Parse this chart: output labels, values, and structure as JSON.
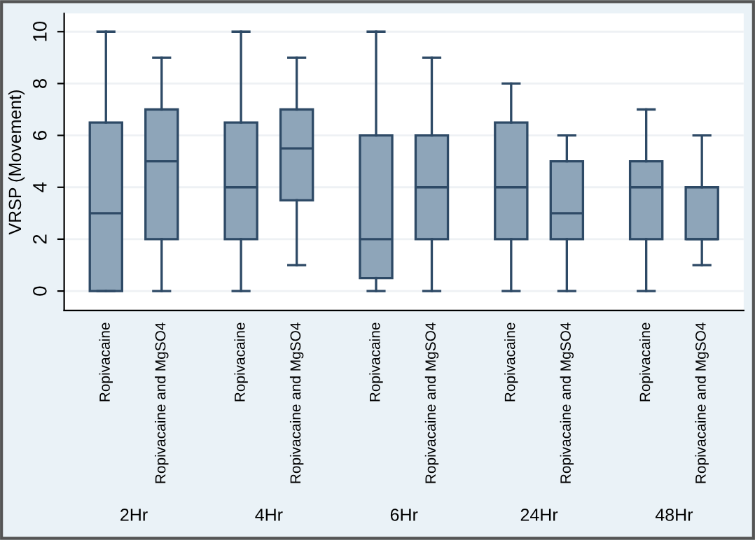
{
  "chart_data": {
    "type": "box",
    "ylabel": "VRSP (Movement)",
    "categories": [
      "Ropivacaine",
      "Ropivacaine and MgSO4",
      "Ropivacaine",
      "Ropivacaine and MgSO4",
      "Ropivacaine",
      "Ropivacaine and MgSO4",
      "Ropivacaine",
      "Ropivacaine and MgSO4",
      "Ropivacaine",
      "Ropivacaine and MgSO4"
    ],
    "annotations": [
      "2Hr",
      "4Hr",
      "6Hr",
      "24Hr",
      "48Hr"
    ],
    "boxes": [
      {
        "low": 0,
        "q1": 0,
        "median": 3,
        "q3": 6.5,
        "high": 10
      },
      {
        "low": 0,
        "q1": 2,
        "median": 5,
        "q3": 7,
        "high": 9
      },
      {
        "low": 0,
        "q1": 2,
        "median": 4,
        "q3": 6.5,
        "high": 10
      },
      {
        "low": 1,
        "q1": 3.5,
        "median": 5.5,
        "q3": 7,
        "high": 9
      },
      {
        "low": 0,
        "q1": 0.5,
        "median": 2,
        "q3": 6,
        "high": 10
      },
      {
        "low": 0,
        "q1": 2,
        "median": 4,
        "q3": 6,
        "high": 9
      },
      {
        "low": 0,
        "q1": 2,
        "median": 4,
        "q3": 6.5,
        "high": 8
      },
      {
        "low": 0,
        "q1": 2,
        "median": 3,
        "q3": 5,
        "high": 6
      },
      {
        "low": 0,
        "q1": 2,
        "median": 4,
        "q3": 5,
        "high": 7
      },
      {
        "low": 1,
        "q1": 2,
        "median": 2,
        "q3": 4,
        "high": 6
      }
    ],
    "color": "#8ea5b9",
    "ylim": [
      -0.75,
      10.7
    ],
    "yticks": [
      0,
      2,
      4,
      6,
      8,
      10
    ],
    "grid": "y"
  }
}
